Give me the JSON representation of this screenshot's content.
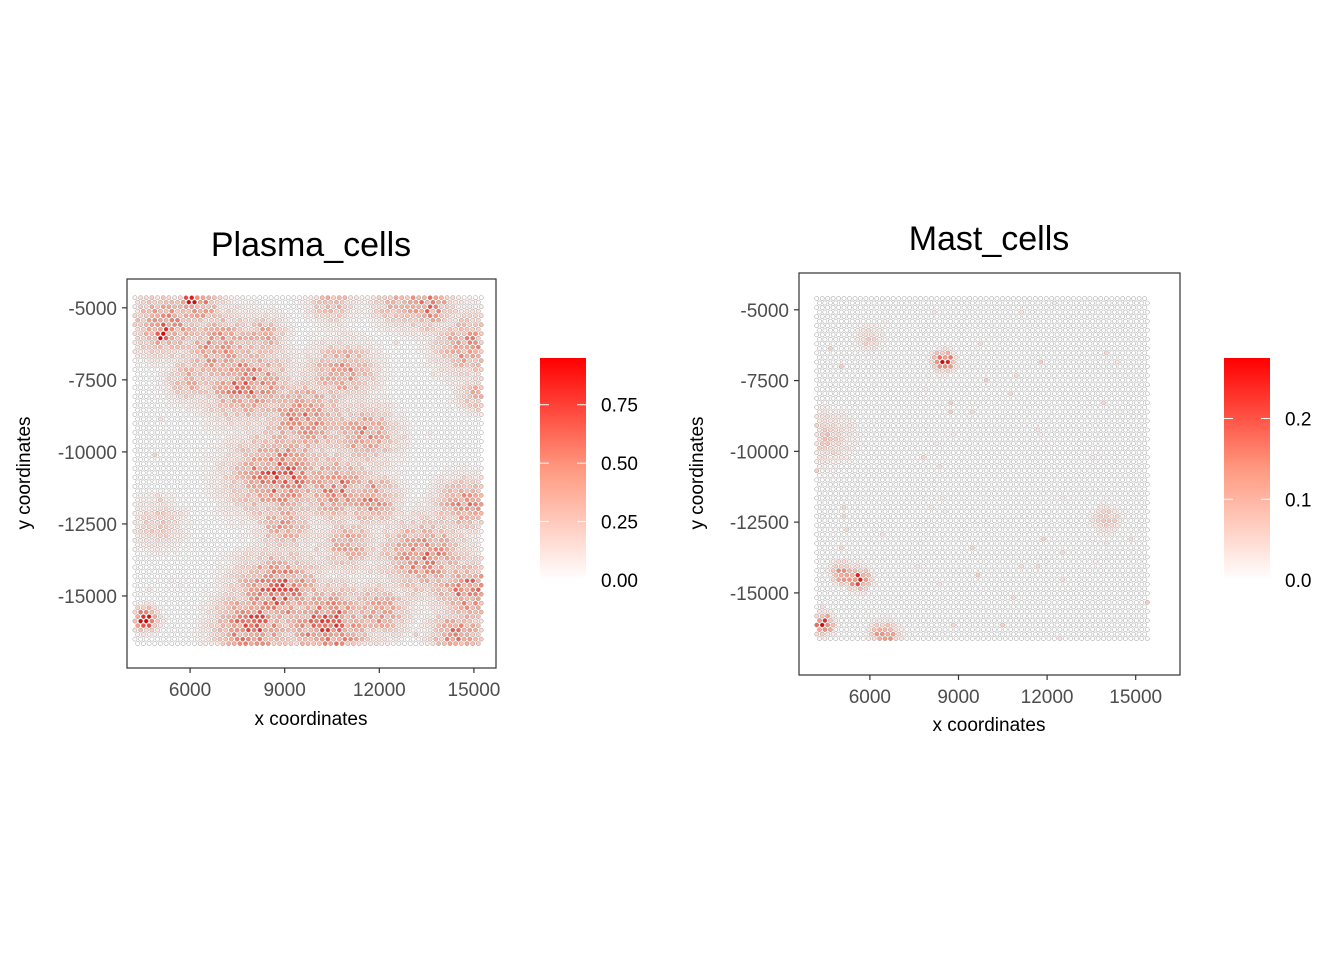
{
  "chart_data": [
    {
      "type": "scatter",
      "title": "Plasma_cells",
      "xlabel": "x coordinates",
      "ylabel": "y coordinates",
      "xlim": [
        4000,
        15700
      ],
      "ylim": [
        -17500,
        -4000
      ],
      "xticks": [
        6000,
        9000,
        12000,
        15000
      ],
      "xtick_labels": [
        "6000",
        "9000",
        "12000",
        "15000"
      ],
      "yticks": [
        -5000,
        -7500,
        -10000,
        -12500,
        -15000
      ],
      "ytick_labels": [
        "-5000",
        "-7500",
        "-10000",
        "-12500",
        "-15000"
      ],
      "grid": false,
      "legend": {
        "position": "right",
        "min": 0,
        "max": 0.95,
        "ticks": [
          0.0,
          0.25,
          0.5,
          0.75
        ],
        "tick_labels": [
          "0.00",
          "0.25",
          "0.50",
          "0.75"
        ],
        "low_color": "#ffffff",
        "high_color": "#ff0000"
      },
      "spots": {
        "x_range": [
          4250,
          15250
        ],
        "y_range": [
          -16800,
          -4650
        ],
        "spacing": 180,
        "seed": 7,
        "hotspots": [
          {
            "x": 5200,
            "y": -5600,
            "r": 700,
            "v": 0.5
          },
          {
            "x": 6200,
            "y": -4900,
            "r": 500,
            "v": 0.55
          },
          {
            "x": 6900,
            "y": -6400,
            "r": 900,
            "v": 0.45
          },
          {
            "x": 7800,
            "y": -7600,
            "r": 900,
            "v": 0.55
          },
          {
            "x": 6000,
            "y": -7500,
            "r": 500,
            "v": 0.35
          },
          {
            "x": 8300,
            "y": -6000,
            "r": 500,
            "v": 0.4
          },
          {
            "x": 9600,
            "y": -8800,
            "r": 900,
            "v": 0.5
          },
          {
            "x": 10800,
            "y": -7200,
            "r": 700,
            "v": 0.45
          },
          {
            "x": 11500,
            "y": -9400,
            "r": 700,
            "v": 0.45
          },
          {
            "x": 8800,
            "y": -10800,
            "r": 1000,
            "v": 0.6
          },
          {
            "x": 10600,
            "y": -11200,
            "r": 800,
            "v": 0.5
          },
          {
            "x": 11700,
            "y": -11600,
            "r": 600,
            "v": 0.5
          },
          {
            "x": 9000,
            "y": -12500,
            "r": 600,
            "v": 0.4
          },
          {
            "x": 11000,
            "y": -13200,
            "r": 600,
            "v": 0.4
          },
          {
            "x": 8800,
            "y": -14800,
            "r": 900,
            "v": 0.6
          },
          {
            "x": 8000,
            "y": -16000,
            "r": 800,
            "v": 0.6
          },
          {
            "x": 10400,
            "y": -16000,
            "r": 900,
            "v": 0.6
          },
          {
            "x": 12000,
            "y": -15500,
            "r": 600,
            "v": 0.45
          },
          {
            "x": 13400,
            "y": -13600,
            "r": 900,
            "v": 0.5
          },
          {
            "x": 14700,
            "y": -11800,
            "r": 600,
            "v": 0.5
          },
          {
            "x": 14800,
            "y": -14800,
            "r": 700,
            "v": 0.55
          },
          {
            "x": 14500,
            "y": -16300,
            "r": 600,
            "v": 0.5
          },
          {
            "x": 13500,
            "y": -4900,
            "r": 600,
            "v": 0.5
          },
          {
            "x": 14800,
            "y": -6300,
            "r": 700,
            "v": 0.45
          },
          {
            "x": 15100,
            "y": -8000,
            "r": 400,
            "v": 0.35
          },
          {
            "x": 5000,
            "y": -12500,
            "r": 600,
            "v": 0.22
          },
          {
            "x": 12500,
            "y": -4900,
            "r": 500,
            "v": 0.35
          },
          {
            "x": 10500,
            "y": -4800,
            "r": 500,
            "v": 0.35
          },
          {
            "x": 4600,
            "y": -15800,
            "r": 250,
            "v": 0.9
          },
          {
            "x": 5100,
            "y": -5900,
            "r": 250,
            "v": 0.85
          },
          {
            "x": 6000,
            "y": -4800,
            "r": 200,
            "v": 0.85
          }
        ]
      }
    },
    {
      "type": "scatter",
      "title": "Mast_cells",
      "xlabel": "x coordinates",
      "ylabel": "y coordinates",
      "xlim": [
        3600,
        16500
      ],
      "ylim": [
        -17900,
        -3700
      ],
      "xticks": [
        6000,
        9000,
        12000,
        15000
      ],
      "xtick_labels": [
        "6000",
        "9000",
        "12000",
        "15000"
      ],
      "yticks": [
        -5000,
        -7500,
        -10000,
        -12500,
        -15000
      ],
      "ytick_labels": [
        "-5000",
        "-7500",
        "-10000",
        "-12500",
        "-15000"
      ],
      "grid": false,
      "legend": {
        "position": "right",
        "min": 0,
        "max": 0.275,
        "ticks": [
          0.0,
          0.1,
          0.2
        ],
        "tick_labels": [
          "0.0",
          "0.1",
          "0.2"
        ],
        "low_color": "#ffffff",
        "high_color": "#ff0000"
      },
      "spots": {
        "x_range": [
          4200,
          15400
        ],
        "y_range": [
          -16750,
          -4600
        ],
        "spacing": 185,
        "seed": 21,
        "hotspots": [
          {
            "x": 8500,
            "y": -6800,
            "r": 220,
            "v": 0.27
          },
          {
            "x": 4400,
            "y": -16100,
            "r": 220,
            "v": 0.27
          },
          {
            "x": 5600,
            "y": -14500,
            "r": 250,
            "v": 0.2
          },
          {
            "x": 5100,
            "y": -14300,
            "r": 250,
            "v": 0.16
          },
          {
            "x": 4500,
            "y": -9500,
            "r": 600,
            "v": 0.07
          },
          {
            "x": 6500,
            "y": -16500,
            "r": 300,
            "v": 0.15
          },
          {
            "x": 14000,
            "y": -12400,
            "r": 300,
            "v": 0.08
          },
          {
            "x": 6000,
            "y": -6000,
            "r": 300,
            "v": 0.06
          }
        ]
      }
    }
  ]
}
